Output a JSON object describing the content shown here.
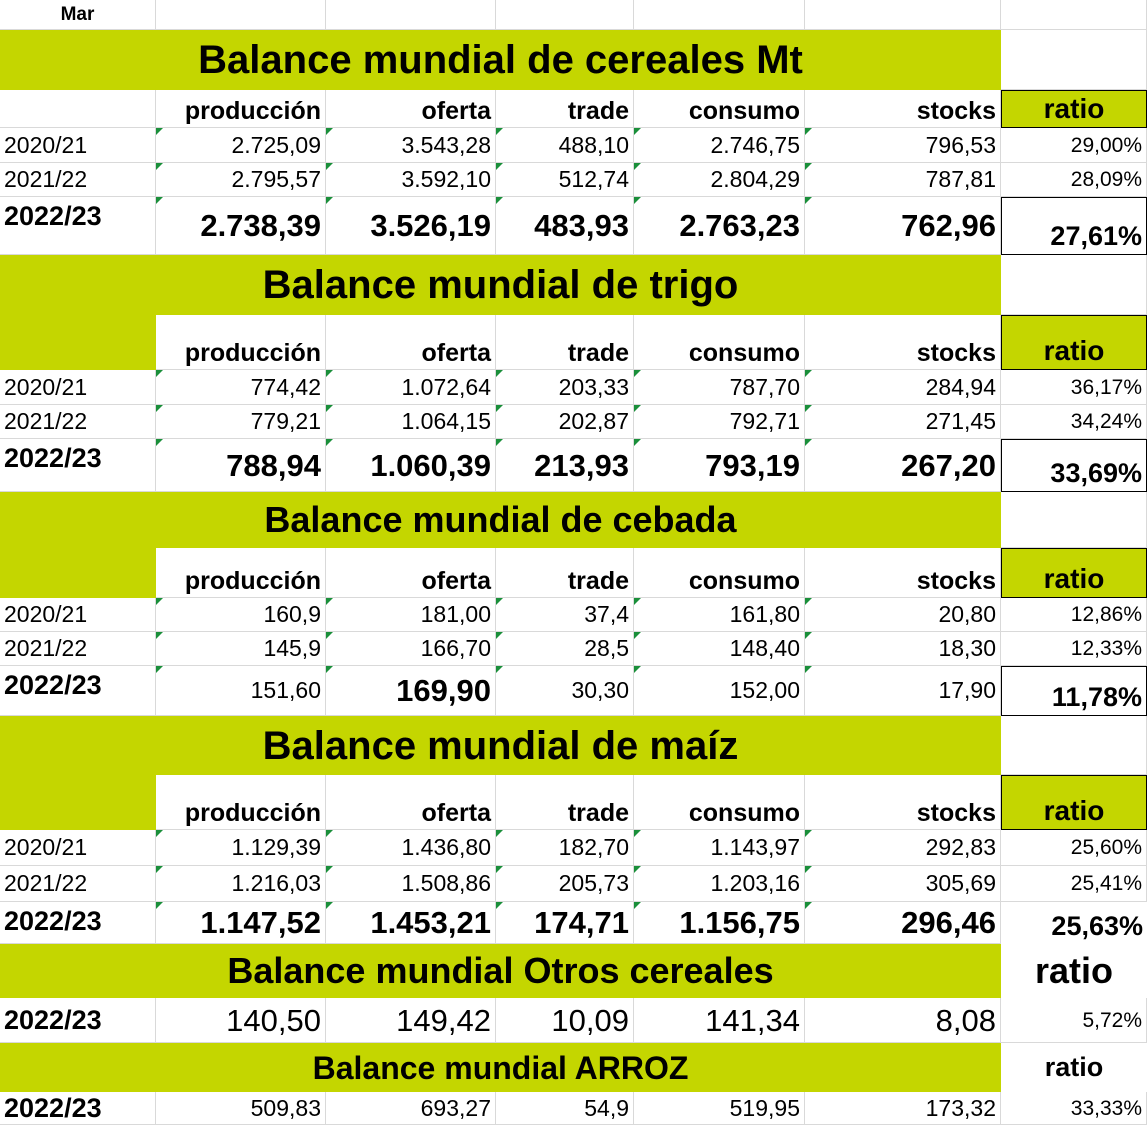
{
  "corner_label": "Mar",
  "headers": [
    "producción",
    "oferta",
    "trade",
    "consumo",
    "stocks"
  ],
  "ratio_label": "ratio",
  "colors": {
    "accent": "#c4d600",
    "indicator": "#1a8f3a",
    "gridline": "#d9d9d9"
  },
  "sections": [
    {
      "title": "Balance mundial de cereales Mt",
      "rows": [
        {
          "year": "2020/21",
          "values": [
            "2.725,09",
            "3.543,28",
            "488,10",
            "2.746,75",
            "796,53"
          ],
          "ratio": "29,00%"
        },
        {
          "year": "2021/22",
          "values": [
            "2.795,57",
            "3.592,10",
            "512,74",
            "2.804,29",
            "787,81"
          ],
          "ratio": "28,09%"
        },
        {
          "year": "2022/23",
          "values": [
            "2.738,39",
            "3.526,19",
            "483,93",
            "2.763,23",
            "762,96"
          ],
          "ratio": "27,61%"
        }
      ]
    },
    {
      "title": "Balance mundial de trigo",
      "rows": [
        {
          "year": "2020/21",
          "values": [
            "774,42",
            "1.072,64",
            "203,33",
            "787,70",
            "284,94"
          ],
          "ratio": "36,17%"
        },
        {
          "year": "2021/22",
          "values": [
            "779,21",
            "1.064,15",
            "202,87",
            "792,71",
            "271,45"
          ],
          "ratio": "34,24%"
        },
        {
          "year": "2022/23",
          "values": [
            "788,94",
            "1.060,39",
            "213,93",
            "793,19",
            "267,20"
          ],
          "ratio": "33,69%"
        }
      ]
    },
    {
      "title": "Balance mundial de cebada",
      "rows": [
        {
          "year": "2020/21",
          "values": [
            "160,9",
            "181,00",
            "37,4",
            "161,80",
            "20,80"
          ],
          "ratio": "12,86%"
        },
        {
          "year": "2021/22",
          "values": [
            "145,9",
            "166,70",
            "28,5",
            "148,40",
            "18,30"
          ],
          "ratio": "12,33%"
        },
        {
          "year": "2022/23",
          "values": [
            "151,60",
            "169,90",
            "30,30",
            "152,00",
            "17,90"
          ],
          "ratio": "11,78%"
        }
      ]
    },
    {
      "title": "Balance mundial de maíz",
      "rows": [
        {
          "year": "2020/21",
          "values": [
            "1.129,39",
            "1.436,80",
            "182,70",
            "1.143,97",
            "292,83"
          ],
          "ratio": "25,60%"
        },
        {
          "year": "2021/22",
          "values": [
            "1.216,03",
            "1.508,86",
            "205,73",
            "1.203,16",
            "305,69"
          ],
          "ratio": "25,41%"
        },
        {
          "year": "2022/23",
          "values": [
            "1.147,52",
            "1.453,21",
            "174,71",
            "1.156,75",
            "296,46"
          ],
          "ratio": "25,63%"
        }
      ]
    },
    {
      "title": "Balance mundial Otros cereales",
      "rows": [
        {
          "year": "2022/23",
          "values": [
            "140,50",
            "149,42",
            "10,09",
            "141,34",
            "8,08"
          ],
          "ratio": "5,72%"
        }
      ]
    },
    {
      "title": "Balance mundial ARROZ",
      "rows": [
        {
          "year": "2022/23",
          "values": [
            "509,83",
            "693,27",
            "54,9",
            "519,95",
            "173,32"
          ],
          "ratio": "33,33%"
        }
      ]
    }
  ]
}
